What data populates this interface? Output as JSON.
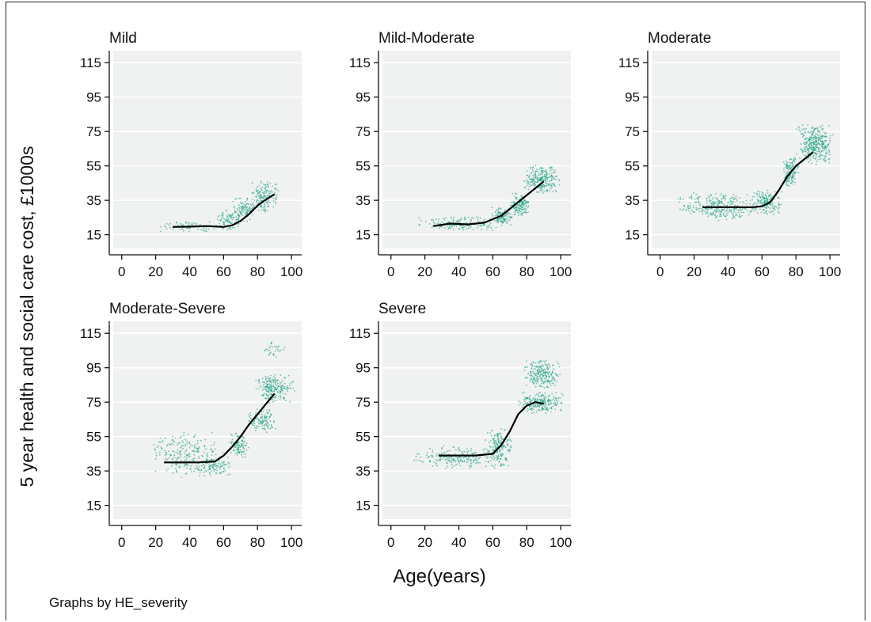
{
  "figure": {
    "ylabel": "5 year health and social care cost, £1000s",
    "xlabel": "Age(years)",
    "note": "Graphs by HE_severity",
    "colors": {
      "scatter": "#19a27f",
      "line": "#000000",
      "plot_bg": "#f0f1f1",
      "grid": "#ffffff"
    }
  },
  "chart_data": [
    {
      "type": "scatter",
      "title": "Mild",
      "xticks": [
        0,
        20,
        40,
        60,
        80,
        100
      ],
      "yticks": [
        15,
        35,
        55,
        75,
        95,
        115
      ],
      "xlim": [
        -5,
        106
      ],
      "ylim": [
        7,
        122
      ],
      "clusters": [
        {
          "x": [
            18,
            62
          ],
          "y": [
            16,
            23
          ],
          "density": 0.5
        },
        {
          "x": [
            55,
            72
          ],
          "y": [
            17,
            30
          ],
          "density": 0.9
        },
        {
          "x": [
            65,
            80
          ],
          "y": [
            22,
            38
          ],
          "density": 1.0
        },
        {
          "x": [
            75,
            93
          ],
          "y": [
            28,
            47
          ],
          "density": 1.0
        }
      ],
      "series": [
        {
          "x": [
            30,
            40,
            50,
            60,
            65,
            70,
            75,
            80,
            85,
            90
          ],
          "y": [
            19.5,
            19.7,
            20,
            19.5,
            20.5,
            23,
            27,
            32,
            35.5,
            38.5
          ]
        }
      ]
    },
    {
      "type": "scatter",
      "title": "Mild-Moderate",
      "xticks": [
        0,
        20,
        40,
        60,
        80,
        100
      ],
      "yticks": [
        15,
        35,
        55,
        75,
        95,
        115
      ],
      "xlim": [
        -5,
        106
      ],
      "ylim": [
        7,
        122
      ],
      "clusters": [
        {
          "x": [
            15,
            65
          ],
          "y": [
            17,
            26
          ],
          "density": 0.8
        },
        {
          "x": [
            58,
            72
          ],
          "y": [
            19,
            31
          ],
          "density": 1.6
        },
        {
          "x": [
            70,
            82
          ],
          "y": [
            25,
            40
          ],
          "density": 1.8
        },
        {
          "x": [
            78,
            100
          ],
          "y": [
            38,
            56
          ],
          "density": 1.4
        }
      ],
      "series": [
        {
          "x": [
            25,
            35,
            45,
            55,
            60,
            65,
            70,
            75,
            80,
            85,
            90
          ],
          "y": [
            20,
            21.5,
            21,
            22,
            24,
            26,
            30,
            34,
            38,
            42,
            46
          ]
        }
      ]
    },
    {
      "type": "scatter",
      "title": "Moderate",
      "xticks": [
        0,
        20,
        40,
        60,
        80,
        100
      ],
      "yticks": [
        15,
        35,
        55,
        75,
        95,
        115
      ],
      "xlim": [
        -5,
        106
      ],
      "ylim": [
        7,
        122
      ],
      "clusters": [
        {
          "x": [
            10,
            58
          ],
          "y": [
            23,
            40
          ],
          "density": 0.8
        },
        {
          "x": [
            52,
            72
          ],
          "y": [
            26,
            42
          ],
          "density": 1.2
        },
        {
          "x": [
            72,
            82
          ],
          "y": [
            42,
            62
          ],
          "density": 1.6
        },
        {
          "x": [
            80,
            102
          ],
          "y": [
            55,
            80
          ],
          "density": 1.4
        }
      ],
      "series": [
        {
          "x": [
            25,
            40,
            55,
            60,
            65,
            70,
            75,
            80,
            85,
            90
          ],
          "y": [
            31,
            31,
            31,
            31.5,
            34,
            41,
            49,
            55,
            59,
            63
          ]
        }
      ]
    },
    {
      "type": "scatter",
      "title": "Moderate-Severe",
      "xticks": [
        0,
        20,
        40,
        60,
        80,
        100
      ],
      "yticks": [
        15,
        35,
        55,
        75,
        95,
        115
      ],
      "xlim": [
        -5,
        106
      ],
      "ylim": [
        7,
        122
      ],
      "clusters": [
        {
          "x": [
            17,
            60
          ],
          "y": [
            31,
            58
          ],
          "density": 0.45
        },
        {
          "x": [
            45,
            65
          ],
          "y": [
            31,
            44
          ],
          "density": 0.8
        },
        {
          "x": [
            62,
            76
          ],
          "y": [
            42,
            58
          ],
          "density": 1.0
        },
        {
          "x": [
            74,
            92
          ],
          "y": [
            57,
            72
          ],
          "density": 1.0
        },
        {
          "x": [
            78,
            102
          ],
          "y": [
            74,
            92
          ],
          "density": 1.1
        },
        {
          "x": [
            82,
            97
          ],
          "y": [
            101,
            111
          ],
          "density": 0.45
        }
      ],
      "series": [
        {
          "x": [
            25,
            35,
            45,
            55,
            60,
            65,
            70,
            75,
            80,
            85,
            90
          ],
          "y": [
            40,
            40,
            40,
            40.5,
            44,
            49,
            55,
            62,
            68,
            74,
            80
          ]
        }
      ]
    },
    {
      "type": "scatter",
      "title": "Severe",
      "xticks": [
        0,
        20,
        40,
        60,
        80,
        100
      ],
      "yticks": [
        15,
        35,
        55,
        75,
        95,
        115
      ],
      "xlim": [
        -5,
        106
      ],
      "ylim": [
        7,
        122
      ],
      "clusters": [
        {
          "x": [
            12,
            62
          ],
          "y": [
            36,
            50
          ],
          "density": 0.6
        },
        {
          "x": [
            55,
            72
          ],
          "y": [
            36,
            60
          ],
          "density": 1.1
        },
        {
          "x": [
            75,
            102
          ],
          "y": [
            68,
            81
          ],
          "density": 1.5
        },
        {
          "x": [
            78,
            100
          ],
          "y": [
            82,
            101
          ],
          "density": 1.2
        }
      ],
      "series": [
        {
          "x": [
            28,
            40,
            50,
            60,
            65,
            70,
            75,
            80,
            85,
            90
          ],
          "y": [
            44,
            44,
            44,
            45,
            50,
            58,
            68,
            73,
            75,
            74
          ]
        }
      ]
    }
  ]
}
